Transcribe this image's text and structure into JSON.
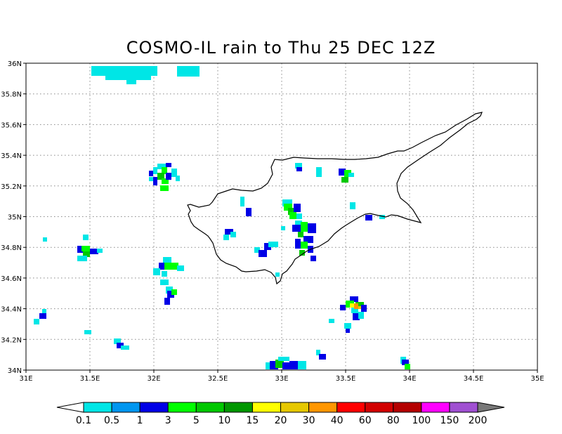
{
  "title": "COSMO-IL rain to Thu 25 DEC 12Z",
  "map": {
    "lon_range": [
      31,
      35
    ],
    "lat_range": [
      34,
      36
    ],
    "x_ticks": [
      "31E",
      "31.5E",
      "32E",
      "32.5E",
      "33E",
      "33.5E",
      "34E",
      "34.5E",
      "35E"
    ],
    "y_ticks": [
      "34N",
      "34.2N",
      "34.4N",
      "34.6N",
      "34.8N",
      "35N",
      "35.2N",
      "35.4N",
      "35.6N",
      "35.8N",
      "36N"
    ],
    "gridlines": "dotted",
    "coastline": "Cyprus"
  },
  "colorbar": {
    "labels": [
      "0.1",
      "0.5",
      "1",
      "3",
      "5",
      "10",
      "15",
      "20",
      "30",
      "40",
      "60",
      "80",
      "100",
      "150",
      "200"
    ],
    "colors": [
      "#ffffff",
      "#00e6e6",
      "#0096f0",
      "#0000e6",
      "#00ff00",
      "#00c800",
      "#009600",
      "#ffff00",
      "#e6c800",
      "#ff9600",
      "#ff0000",
      "#d20000",
      "#b40000",
      "#ff00ff",
      "#a050d2",
      "#787878"
    ]
  }
}
